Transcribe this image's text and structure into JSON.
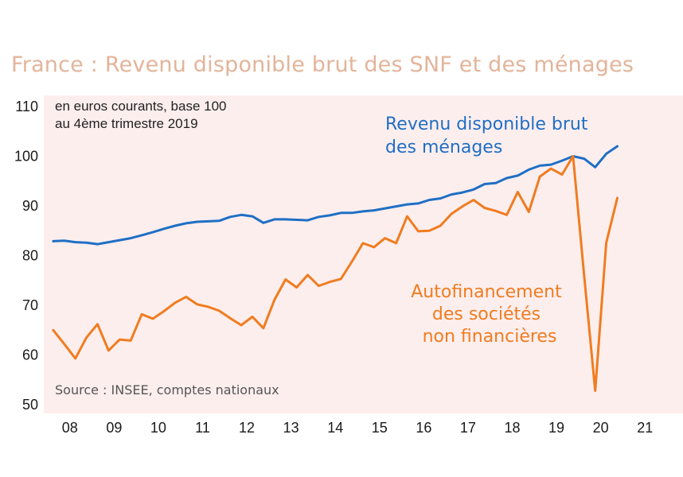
{
  "chart_data": {
    "type": "line",
    "title": "France : Revenu disponible brut des SNF et des ménages",
    "note_lines": [
      "en euros courants, base 100",
      "au 4ème trimestre 2019"
    ],
    "source": "Source : INSEE, comptes nationaux",
    "ylim": [
      50,
      110
    ],
    "yticks": [
      50,
      60,
      70,
      80,
      90,
      100,
      110
    ],
    "ytick_labels": [
      "50",
      "60",
      "70",
      "80",
      "90",
      "100",
      "110"
    ],
    "xlim": [
      2008,
      2022
    ],
    "xticks": [
      2008,
      2009,
      2010,
      2011,
      2012,
      2013,
      2014,
      2015,
      2016,
      2017,
      2018,
      2019,
      2020,
      2021
    ],
    "xtick_labels": [
      "08",
      "09",
      "10",
      "11",
      "12",
      "13",
      "14",
      "15",
      "16",
      "17",
      "18",
      "19",
      "20",
      "21"
    ],
    "grid": false,
    "series": [
      {
        "name_lines": [
          "Revenu disponible brut",
          "des ménages"
        ],
        "color": "#1f6fc4",
        "x": [
          2008.0,
          2008.25,
          2008.5,
          2008.75,
          2009.0,
          2009.25,
          2009.5,
          2009.75,
          2010.0,
          2010.25,
          2010.5,
          2010.75,
          2011.0,
          2011.25,
          2011.5,
          2011.75,
          2012.0,
          2012.25,
          2012.5,
          2012.75,
          2013.0,
          2013.25,
          2013.5,
          2013.75,
          2014.0,
          2014.25,
          2014.5,
          2014.75,
          2015.0,
          2015.25,
          2015.5,
          2015.75,
          2016.0,
          2016.25,
          2016.5,
          2016.75,
          2017.0,
          2017.25,
          2017.5,
          2017.75,
          2018.0,
          2018.25,
          2018.5,
          2018.75,
          2019.0,
          2019.25,
          2019.5,
          2019.75,
          2020.0,
          2020.25,
          2020.5,
          2020.75
        ],
        "values": [
          82.9,
          83.0,
          82.7,
          82.6,
          82.3,
          82.7,
          83.1,
          83.5,
          84.1,
          84.7,
          85.4,
          86.0,
          86.5,
          86.8,
          86.9,
          87.0,
          87.8,
          88.2,
          87.9,
          86.6,
          87.3,
          87.3,
          87.2,
          87.1,
          87.8,
          88.1,
          88.6,
          88.6,
          88.9,
          89.1,
          89.5,
          89.9,
          90.3,
          90.5,
          91.2,
          91.5,
          92.3,
          92.7,
          93.3,
          94.4,
          94.6,
          95.6,
          96.1,
          97.3,
          98.1,
          98.3,
          99.1,
          100.0,
          99.5,
          97.8,
          100.5,
          102.0
        ]
      },
      {
        "name_lines": [
          "Autofinancement",
          "des sociétés",
          "non financières"
        ],
        "color": "#f07c1f",
        "x": [
          2008.0,
          2008.25,
          2008.5,
          2008.75,
          2009.0,
          2009.25,
          2009.5,
          2009.75,
          2010.0,
          2010.25,
          2010.5,
          2010.75,
          2011.0,
          2011.25,
          2011.5,
          2011.75,
          2012.0,
          2012.25,
          2012.5,
          2012.75,
          2013.0,
          2013.25,
          2013.5,
          2013.75,
          2014.0,
          2014.25,
          2014.5,
          2014.75,
          2015.0,
          2015.25,
          2015.5,
          2015.75,
          2016.0,
          2016.25,
          2016.5,
          2016.75,
          2017.0,
          2017.25,
          2017.5,
          2017.75,
          2018.0,
          2018.25,
          2018.5,
          2018.75,
          2019.0,
          2019.25,
          2019.5,
          2019.75,
          2020.0,
          2020.25,
          2020.5,
          2020.75
        ],
        "values": [
          65.0,
          62.2,
          59.3,
          63.5,
          66.2,
          60.9,
          63.1,
          62.9,
          68.2,
          67.3,
          68.8,
          70.5,
          71.7,
          70.2,
          69.7,
          68.9,
          67.4,
          66.0,
          67.7,
          65.4,
          71.1,
          75.2,
          73.6,
          76.1,
          73.9,
          74.7,
          75.3,
          78.8,
          82.5,
          81.7,
          83.5,
          82.5,
          87.9,
          84.9,
          85.0,
          86.0,
          88.4,
          89.9,
          91.2,
          89.6,
          89.0,
          88.2,
          92.8,
          88.8,
          95.9,
          97.5,
          96.3,
          100.0,
          76.0,
          52.8,
          82.6,
          91.6
        ]
      }
    ]
  }
}
